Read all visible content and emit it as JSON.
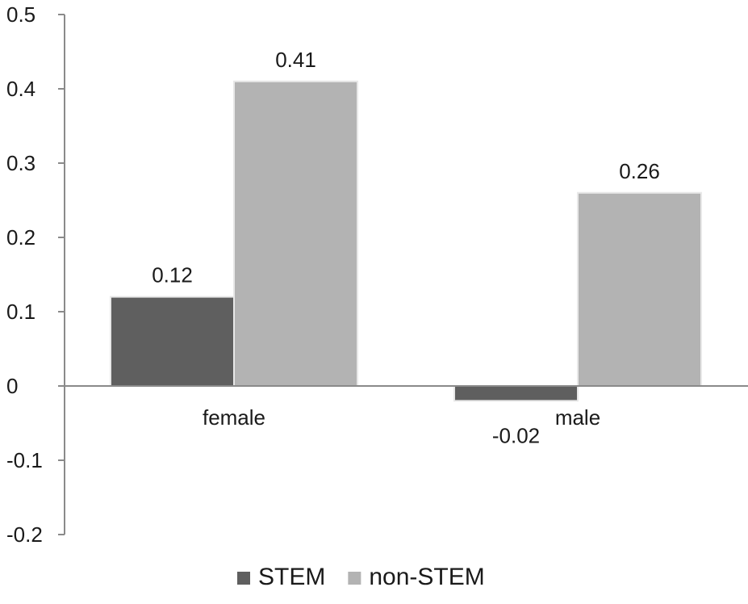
{
  "chart_data": {
    "type": "bar",
    "categories": [
      "female",
      "male"
    ],
    "series": [
      {
        "name": "STEM",
        "values": [
          0.12,
          -0.02
        ],
        "color": "#5f5f5f"
      },
      {
        "name": "non-STEM",
        "values": [
          0.41,
          0.26
        ],
        "color": "#b3b3b3"
      }
    ],
    "data_labels": [
      [
        "0.12",
        "-0.02"
      ],
      [
        "0.41",
        "0.26"
      ]
    ],
    "ylim": [
      -0.2,
      0.5
    ],
    "yticks": [
      0.5,
      0.4,
      0.3,
      0.2,
      0.1,
      0,
      -0.1,
      -0.2
    ],
    "ytick_labels": [
      "0.5",
      "0.4",
      "0.3",
      "0.2",
      "0.1",
      "0",
      "-0.1",
      "-0.2"
    ],
    "title": "",
    "xlabel": "",
    "ylabel": "",
    "grid": false,
    "legend": "bottom"
  }
}
